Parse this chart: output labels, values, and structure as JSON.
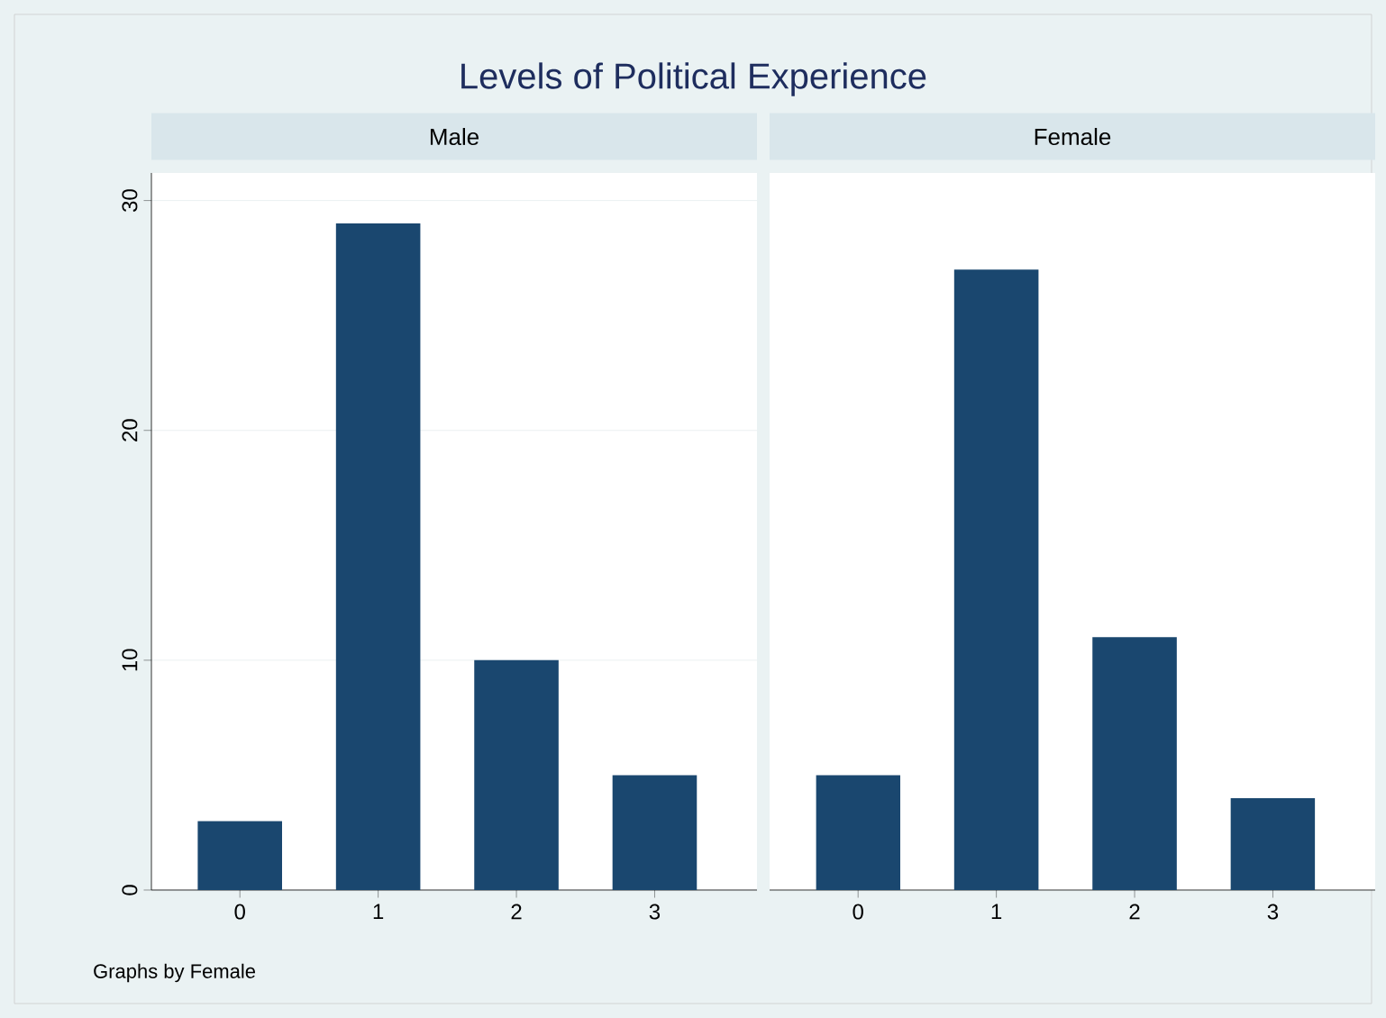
{
  "chart_data": [
    {
      "type": "bar",
      "title": "Levels of Political Experience",
      "subtitle": "Male",
      "categories": [
        "0",
        "1",
        "2",
        "3"
      ],
      "values": [
        3,
        29,
        10,
        5
      ],
      "color": "#1a476f",
      "ylim": [
        0,
        31.2
      ],
      "yticks": [
        0,
        10,
        20,
        30
      ],
      "grid": "y",
      "annotations": [
        "Graphs by Female"
      ]
    },
    {
      "type": "bar",
      "subtitle": "Female",
      "categories": [
        "0",
        "1",
        "2",
        "3"
      ],
      "values": [
        5,
        27,
        11,
        4
      ],
      "color": "#1a476f",
      "ylim": [
        0,
        31.2
      ],
      "yticks": [
        0,
        10,
        20,
        30
      ],
      "grid": "y",
      "tick_labels": "x"
    }
  ]
}
